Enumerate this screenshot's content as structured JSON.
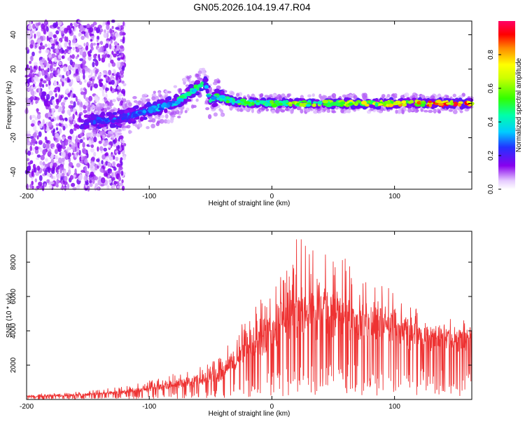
{
  "figure_title": "GN05.2026.104.19.47.R04",
  "chart_data": [
    {
      "type": "heatmap",
      "title": "GN05.2026.104.19.47.R04",
      "xlabel": "Height of straight line (km)",
      "ylabel": "Frequency (Hz)",
      "xlim": [
        -200,
        163
      ],
      "ylim": [
        -50,
        48
      ],
      "xticks": [
        -200,
        -100,
        0,
        100
      ],
      "yticks": [
        -40,
        -20,
        0,
        20,
        40
      ],
      "colorbar": {
        "label": "Normalized spectral amplitude",
        "range": [
          0,
          1
        ],
        "ticks": [
          0.0,
          0.2,
          0.4,
          0.6,
          0.8
        ]
      },
      "ridge": {
        "description_points_x": [
          -150,
          -130,
          -110,
          -95,
          -80,
          -65,
          -55,
          -50,
          -45,
          -30,
          -10,
          0,
          20,
          40,
          60,
          80,
          100,
          120,
          140,
          163
        ],
        "frequency_y": [
          -10,
          -10,
          -6,
          -3,
          0,
          7,
          13,
          0,
          4,
          1,
          0,
          0,
          0,
          0,
          0,
          0,
          0,
          0,
          0,
          0
        ],
        "amplitude": [
          0.25,
          0.3,
          0.3,
          0.35,
          0.45,
          0.5,
          0.55,
          0.45,
          0.5,
          0.55,
          0.6,
          0.6,
          0.65,
          0.65,
          0.7,
          0.75,
          0.8,
          0.85,
          0.95,
          0.9
        ]
      }
    },
    {
      "type": "line",
      "xlabel": "Height of straight line (km)",
      "ylabel": "SNR (10 * v/v)",
      "xlim": [
        -200,
        163
      ],
      "ylim": [
        0,
        9800
      ],
      "xticks": [
        -200,
        -100,
        0,
        100
      ],
      "yticks": [
        2000,
        4000,
        6000,
        8000
      ],
      "series": [
        {
          "name": "SNR",
          "color": "#ee3333",
          "x": [
            -200,
            -180,
            -160,
            -140,
            -120,
            -100,
            -90,
            -80,
            -70,
            -60,
            -50,
            -40,
            -30,
            -20,
            -10,
            0,
            10,
            20,
            30,
            40,
            50,
            60,
            70,
            80,
            90,
            100,
            110,
            120,
            130,
            140,
            150,
            163
          ],
          "y": [
            150,
            200,
            250,
            300,
            400,
            600,
            700,
            800,
            900,
            1000,
            1100,
            1500,
            2200,
            2800,
            3200,
            3600,
            4000,
            4400,
            4600,
            4700,
            4700,
            4600,
            4500,
            4400,
            4300,
            4200,
            4100,
            4000,
            3900,
            3900,
            3800,
            3800
          ],
          "peak_envelope": [
            300,
            400,
            450,
            600,
            800,
            1100,
            1300,
            1500,
            1700,
            1900,
            2100,
            2800,
            3800,
            5000,
            6000,
            7000,
            7600,
            9600,
            9000,
            8700,
            8400,
            8200,
            7800,
            7200,
            6800,
            6300,
            5800,
            5400,
            5000,
            4800,
            4700,
            4600
          ]
        }
      ]
    }
  ]
}
